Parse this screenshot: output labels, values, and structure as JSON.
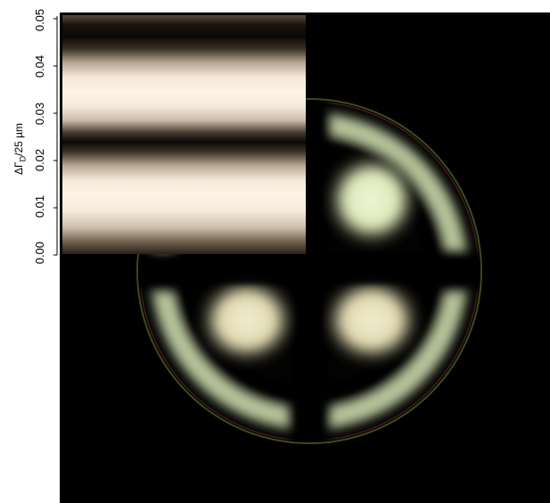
{
  "figure": {
    "axis_title": "ΔΓ",
    "axis_title_subscript": "D",
    "axis_title_suffix": "/25 µm",
    "y_ticks": [
      "0.00",
      "0.01",
      "0.02",
      "0.03",
      "0.04",
      "0.05"
    ],
    "y_range": [
      0.0,
      0.05
    ]
  },
  "colors": {
    "background": "#000000",
    "fringe_light": "#fdf2e4",
    "fringe_dark": "#0a0806",
    "conoscopic_highlight": "#eaf5d0",
    "conoscopic_ring": "#c8d6a8",
    "rim_red": "#a03a3a",
    "rim_green": "#6b8a35"
  }
}
